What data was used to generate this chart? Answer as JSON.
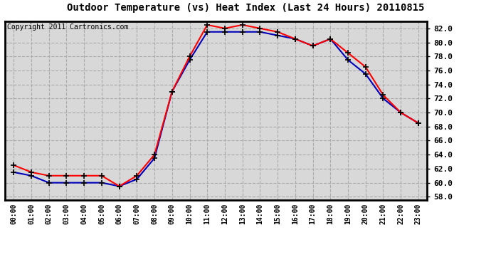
{
  "title": "Outdoor Temperature (vs) Heat Index (Last 24 Hours) 20110815",
  "copyright": "Copyright 2011 Cartronics.com",
  "hours": [
    "00:00",
    "01:00",
    "02:00",
    "03:00",
    "04:00",
    "05:00",
    "06:00",
    "07:00",
    "08:00",
    "09:00",
    "10:00",
    "11:00",
    "12:00",
    "13:00",
    "14:00",
    "15:00",
    "16:00",
    "17:00",
    "18:00",
    "19:00",
    "20:00",
    "21:00",
    "22:00",
    "23:00"
  ],
  "red_temp": [
    62.5,
    61.5,
    61.0,
    61.0,
    61.0,
    61.0,
    59.5,
    61.0,
    64.0,
    73.0,
    78.0,
    82.5,
    82.0,
    82.5,
    82.0,
    81.5,
    80.5,
    79.5,
    80.5,
    78.5,
    76.5,
    72.5,
    70.0,
    68.5
  ],
  "blue_heat": [
    61.5,
    61.0,
    60.0,
    60.0,
    60.0,
    60.0,
    59.5,
    60.5,
    63.5,
    73.0,
    77.5,
    81.5,
    81.5,
    81.5,
    81.5,
    81.0,
    80.5,
    79.5,
    80.5,
    77.5,
    75.5,
    72.0,
    70.0,
    68.5
  ],
  "ylim": [
    57.5,
    83.0
  ],
  "yticks": [
    58.0,
    60.0,
    62.0,
    64.0,
    66.0,
    68.0,
    70.0,
    72.0,
    74.0,
    76.0,
    78.0,
    80.0,
    82.0
  ],
  "red_color": "#ff0000",
  "blue_color": "#0000bb",
  "bg_color": "#ffffff",
  "plot_bg_color": "#d8d8d8",
  "grid_color": "#aaaaaa",
  "title_fontsize": 10,
  "copyright_fontsize": 7,
  "tick_fontsize": 7,
  "ytick_fontsize": 8
}
